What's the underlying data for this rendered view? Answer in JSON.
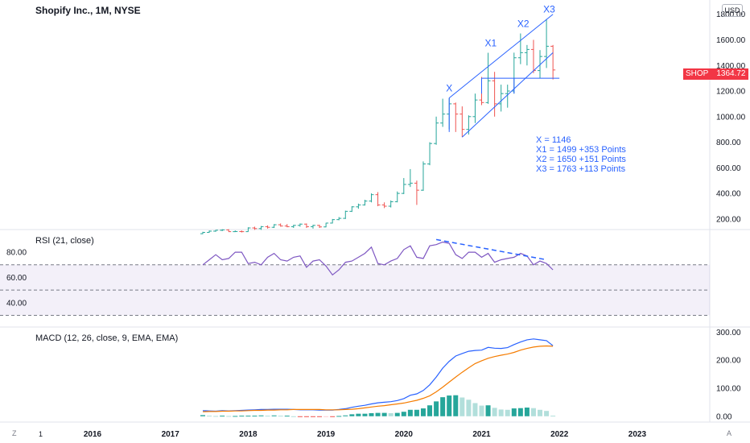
{
  "header": {
    "symbol_title": "Shopify Inc., 1M, NYSE",
    "currency": "USD"
  },
  "price_badge": {
    "ticker": "SHOP",
    "price": "1364.72",
    "color": "#f23645"
  },
  "annotations": {
    "wave_labels": [
      "X",
      "X1",
      "X2",
      "X3"
    ],
    "lines": [
      "X = 1146",
      "X1 = 1499 +353 Points",
      "X2 = 1650 +151 Points",
      "X3 = 1763 +113 Points"
    ]
  },
  "rsi_title": "RSI (21, close)",
  "macd_title": "MACD (12, 26, close, 9, EMA, EMA)",
  "bottom_bar": {
    "left": "Z",
    "zero": "1",
    "right": "A"
  },
  "colors": {
    "up": "#26a69a",
    "down": "#ef5350",
    "blue": "#2962ff",
    "orange": "#f57c00",
    "rsi": "#7e57c2"
  },
  "chart_data": [
    {
      "type": "ohlc",
      "title": "Shopify Inc., 1M, NYSE",
      "x_tick_labels": [
        "2016",
        "2017",
        "2018",
        "2019",
        "2020",
        "2021",
        "2022",
        "2023"
      ],
      "y_tick_labels": [
        "200.00",
        "400.00",
        "600.00",
        "800.00",
        "1000.00",
        "1200.00",
        "1400.00",
        "1600.00",
        "1800.00"
      ],
      "ylim": [
        130,
        1880
      ],
      "last_price": 1364.72,
      "bars": [
        {
          "t": "2017-06",
          "o": 85,
          "h": 100,
          "l": 82,
          "c": 95
        },
        {
          "t": "2017-07",
          "o": 95,
          "h": 110,
          "l": 92,
          "c": 105
        },
        {
          "t": "2017-08",
          "o": 105,
          "h": 115,
          "l": 100,
          "c": 112
        },
        {
          "t": "2017-09",
          "o": 112,
          "h": 120,
          "l": 105,
          "c": 115
        },
        {
          "t": "2017-10",
          "o": 115,
          "h": 120,
          "l": 98,
          "c": 101
        },
        {
          "t": "2017-11",
          "o": 101,
          "h": 110,
          "l": 98,
          "c": 102
        },
        {
          "t": "2017-12",
          "o": 102,
          "h": 110,
          "l": 95,
          "c": 101
        },
        {
          "t": "2018-01",
          "o": 101,
          "h": 135,
          "l": 100,
          "c": 130
        },
        {
          "t": "2018-02",
          "o": 130,
          "h": 140,
          "l": 115,
          "c": 125
        },
        {
          "t": "2018-03",
          "o": 125,
          "h": 145,
          "l": 115,
          "c": 140
        },
        {
          "t": "2018-04",
          "o": 140,
          "h": 150,
          "l": 125,
          "c": 135
        },
        {
          "t": "2018-05",
          "o": 135,
          "h": 160,
          "l": 130,
          "c": 155
        },
        {
          "t": "2018-06",
          "o": 155,
          "h": 165,
          "l": 140,
          "c": 145
        },
        {
          "t": "2018-07",
          "o": 145,
          "h": 160,
          "l": 135,
          "c": 140
        },
        {
          "t": "2018-08",
          "o": 140,
          "h": 155,
          "l": 130,
          "c": 150
        },
        {
          "t": "2018-09",
          "o": 150,
          "h": 165,
          "l": 140,
          "c": 160
        },
        {
          "t": "2018-10",
          "o": 160,
          "h": 165,
          "l": 130,
          "c": 140
        },
        {
          "t": "2018-11",
          "o": 140,
          "h": 155,
          "l": 125,
          "c": 150
        },
        {
          "t": "2018-12",
          "o": 150,
          "h": 155,
          "l": 130,
          "c": 138
        },
        {
          "t": "2019-01",
          "o": 138,
          "h": 170,
          "l": 135,
          "c": 168
        },
        {
          "t": "2019-02",
          "o": 168,
          "h": 200,
          "l": 165,
          "c": 195
        },
        {
          "t": "2019-03",
          "o": 195,
          "h": 215,
          "l": 190,
          "c": 205
        },
        {
          "t": "2019-04",
          "o": 205,
          "h": 265,
          "l": 200,
          "c": 260
        },
        {
          "t": "2019-05",
          "o": 260,
          "h": 300,
          "l": 255,
          "c": 295
        },
        {
          "t": "2019-06",
          "o": 295,
          "h": 320,
          "l": 280,
          "c": 310
        },
        {
          "t": "2019-07",
          "o": 310,
          "h": 350,
          "l": 305,
          "c": 340
        },
        {
          "t": "2019-08",
          "o": 340,
          "h": 400,
          "l": 330,
          "c": 390
        },
        {
          "t": "2019-09",
          "o": 390,
          "h": 410,
          "l": 300,
          "c": 310
        },
        {
          "t": "2019-10",
          "o": 310,
          "h": 330,
          "l": 285,
          "c": 300
        },
        {
          "t": "2019-11",
          "o": 300,
          "h": 345,
          "l": 290,
          "c": 335
        },
        {
          "t": "2019-12",
          "o": 335,
          "h": 415,
          "l": 330,
          "c": 400
        },
        {
          "t": "2020-01",
          "o": 400,
          "h": 520,
          "l": 395,
          "c": 470
        },
        {
          "t": "2020-02",
          "o": 470,
          "h": 590,
          "l": 450,
          "c": 480
        },
        {
          "t": "2020-03",
          "o": 480,
          "h": 500,
          "l": 310,
          "c": 425
        },
        {
          "t": "2020-04",
          "o": 425,
          "h": 650,
          "l": 420,
          "c": 630
        },
        {
          "t": "2020-05",
          "o": 630,
          "h": 800,
          "l": 620,
          "c": 790
        },
        {
          "t": "2020-06",
          "o": 790,
          "h": 1000,
          "l": 780,
          "c": 950
        },
        {
          "t": "2020-07",
          "o": 950,
          "h": 1140,
          "l": 920,
          "c": 1020
        },
        {
          "t": "2020-08",
          "o": 1020,
          "h": 1146,
          "l": 900,
          "c": 1100
        },
        {
          "t": "2020-09",
          "o": 1100,
          "h": 1110,
          "l": 880,
          "c": 1020
        },
        {
          "t": "2020-10",
          "o": 1020,
          "h": 1080,
          "l": 840,
          "c": 900
        },
        {
          "t": "2020-11",
          "o": 900,
          "h": 1010,
          "l": 860,
          "c": 1000
        },
        {
          "t": "2020-12",
          "o": 1000,
          "h": 1180,
          "l": 950,
          "c": 1130
        },
        {
          "t": "2021-01",
          "o": 1130,
          "h": 1310,
          "l": 1090,
          "c": 1110
        },
        {
          "t": "2021-02",
          "o": 1110,
          "h": 1499,
          "l": 1100,
          "c": 1280
        },
        {
          "t": "2021-03",
          "o": 1280,
          "h": 1350,
          "l": 1000,
          "c": 1100
        },
        {
          "t": "2021-04",
          "o": 1100,
          "h": 1250,
          "l": 1040,
          "c": 1180
        },
        {
          "t": "2021-05",
          "o": 1180,
          "h": 1250,
          "l": 1070,
          "c": 1200
        },
        {
          "t": "2021-06",
          "o": 1200,
          "h": 1500,
          "l": 1180,
          "c": 1460
        },
        {
          "t": "2021-07",
          "o": 1460,
          "h": 1650,
          "l": 1410,
          "c": 1500
        },
        {
          "t": "2021-08",
          "o": 1500,
          "h": 1560,
          "l": 1400,
          "c": 1525
        },
        {
          "t": "2021-09",
          "o": 1525,
          "h": 1600,
          "l": 1340,
          "c": 1360
        },
        {
          "t": "2021-10",
          "o": 1360,
          "h": 1520,
          "l": 1300,
          "c": 1470
        },
        {
          "t": "2021-11",
          "o": 1470,
          "h": 1763,
          "l": 1380,
          "c": 1550
        },
        {
          "t": "2021-12",
          "o": 1550,
          "h": 1560,
          "l": 1290,
          "c": 1364.72
        }
      ]
    },
    {
      "type": "line",
      "title": "RSI (21, close)",
      "y_tick_labels": [
        "40.00",
        "60.00",
        "80.00"
      ],
      "ylim": [
        22,
        96
      ],
      "levels": [
        70,
        50,
        30
      ],
      "x": [
        "2017-06",
        "2017-07",
        "2017-08",
        "2017-09",
        "2017-10",
        "2017-11",
        "2017-12",
        "2018-01",
        "2018-02",
        "2018-03",
        "2018-04",
        "2018-05",
        "2018-06",
        "2018-07",
        "2018-08",
        "2018-09",
        "2018-10",
        "2018-11",
        "2018-12",
        "2019-01",
        "2019-02",
        "2019-03",
        "2019-04",
        "2019-05",
        "2019-06",
        "2019-07",
        "2019-08",
        "2019-09",
        "2019-10",
        "2019-11",
        "2019-12",
        "2020-01",
        "2020-02",
        "2020-03",
        "2020-04",
        "2020-05",
        "2020-06",
        "2020-07",
        "2020-08",
        "2020-09",
        "2020-10",
        "2020-11",
        "2020-12",
        "2021-01",
        "2021-02",
        "2021-03",
        "2021-04",
        "2021-05",
        "2021-06",
        "2021-07",
        "2021-08",
        "2021-09",
        "2021-10",
        "2021-11",
        "2021-12"
      ],
      "series": [
        {
          "values": [
            70,
            74,
            78,
            74,
            75,
            80,
            80,
            71,
            72,
            70,
            76,
            79,
            74,
            73,
            76,
            77,
            68,
            73,
            74,
            69,
            62,
            66,
            72,
            73,
            76,
            79,
            84,
            71,
            70,
            73,
            75,
            82,
            85,
            76,
            75,
            85,
            86,
            88,
            87,
            78,
            75,
            80,
            80,
            76,
            79,
            72,
            74,
            75,
            76,
            79,
            77,
            70,
            73,
            71,
            66
          ]
        }
      ],
      "trendline": {
        "x": [
          "2020-06",
          "2021-11"
        ],
        "y": [
          90,
          74
        ]
      }
    },
    {
      "type": "line",
      "title": "MACD (12, 26, close, 9, EMA, EMA)",
      "y_tick_labels": [
        "0.00",
        "100.00",
        "200.00",
        "300.00"
      ],
      "ylim": [
        -15,
        310
      ],
      "series": [
        {
          "name": "MACD",
          "values": [
            20,
            19,
            18,
            20,
            19,
            20,
            21,
            22,
            23,
            24,
            24,
            25,
            25,
            25,
            24,
            23,
            23,
            23,
            22,
            22,
            22,
            24,
            27,
            32,
            36,
            39,
            44,
            48,
            50,
            52,
            56,
            63,
            75,
            80,
            92,
            112,
            140,
            172,
            196,
            215,
            224,
            232,
            235,
            236,
            246,
            243,
            242,
            245,
            256,
            265,
            273,
            276,
            273,
            270,
            252
          ]
        },
        {
          "name": "Signal",
          "values": [
            16,
            17,
            17,
            18,
            18,
            19,
            19,
            20,
            21,
            21,
            22,
            22,
            23,
            23,
            24,
            24,
            24,
            24,
            24,
            23,
            23,
            23,
            24,
            25,
            27,
            30,
            33,
            36,
            38,
            41,
            44,
            47,
            52,
            57,
            64,
            73,
            87,
            104,
            122,
            140,
            157,
            173,
            188,
            198,
            207,
            213,
            218,
            222,
            228,
            236,
            242,
            247,
            250,
            251,
            250
          ]
        }
      ],
      "histogram": [
        4,
        2,
        1,
        2,
        1,
        1,
        2,
        2,
        2,
        3,
        2,
        3,
        2,
        2,
        0,
        -1,
        -1,
        -1,
        -2,
        -1,
        -1,
        1,
        3,
        7,
        9,
        9,
        11,
        12,
        12,
        11,
        12,
        16,
        23,
        23,
        28,
        39,
        53,
        68,
        74,
        75,
        67,
        59,
        47,
        38,
        39,
        30,
        24,
        23,
        28,
        29,
        31,
        29,
        23,
        19,
        2
      ]
    }
  ]
}
